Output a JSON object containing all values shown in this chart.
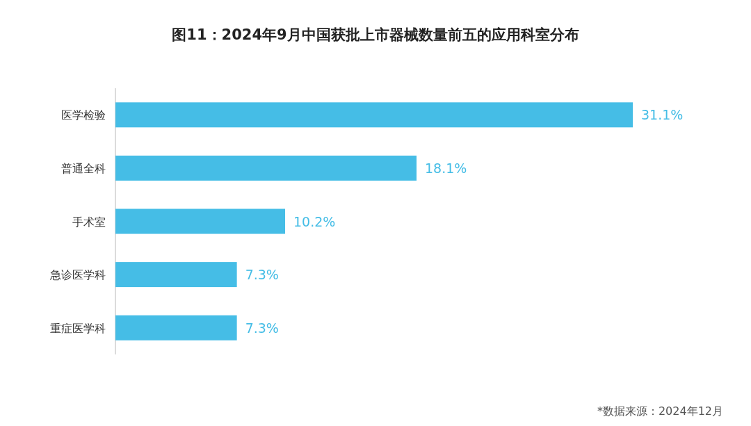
{
  "chart_data": {
    "type": "bar",
    "orientation": "horizontal",
    "title": "图11：2024年9月中国获批上市器械数量前五的应用科室分布",
    "categories": [
      "医学检验",
      "普通全科",
      "手术室",
      "急诊医学科",
      "重症医学科"
    ],
    "values": [
      31.1,
      18.1,
      10.2,
      7.3,
      7.3
    ],
    "value_labels": [
      "31.1%",
      "18.1%",
      "10.2%",
      "7.3%",
      "7.3%"
    ],
    "color": "#45bde6",
    "annotations": [
      "*数据来源：2024年12月"
    ]
  }
}
